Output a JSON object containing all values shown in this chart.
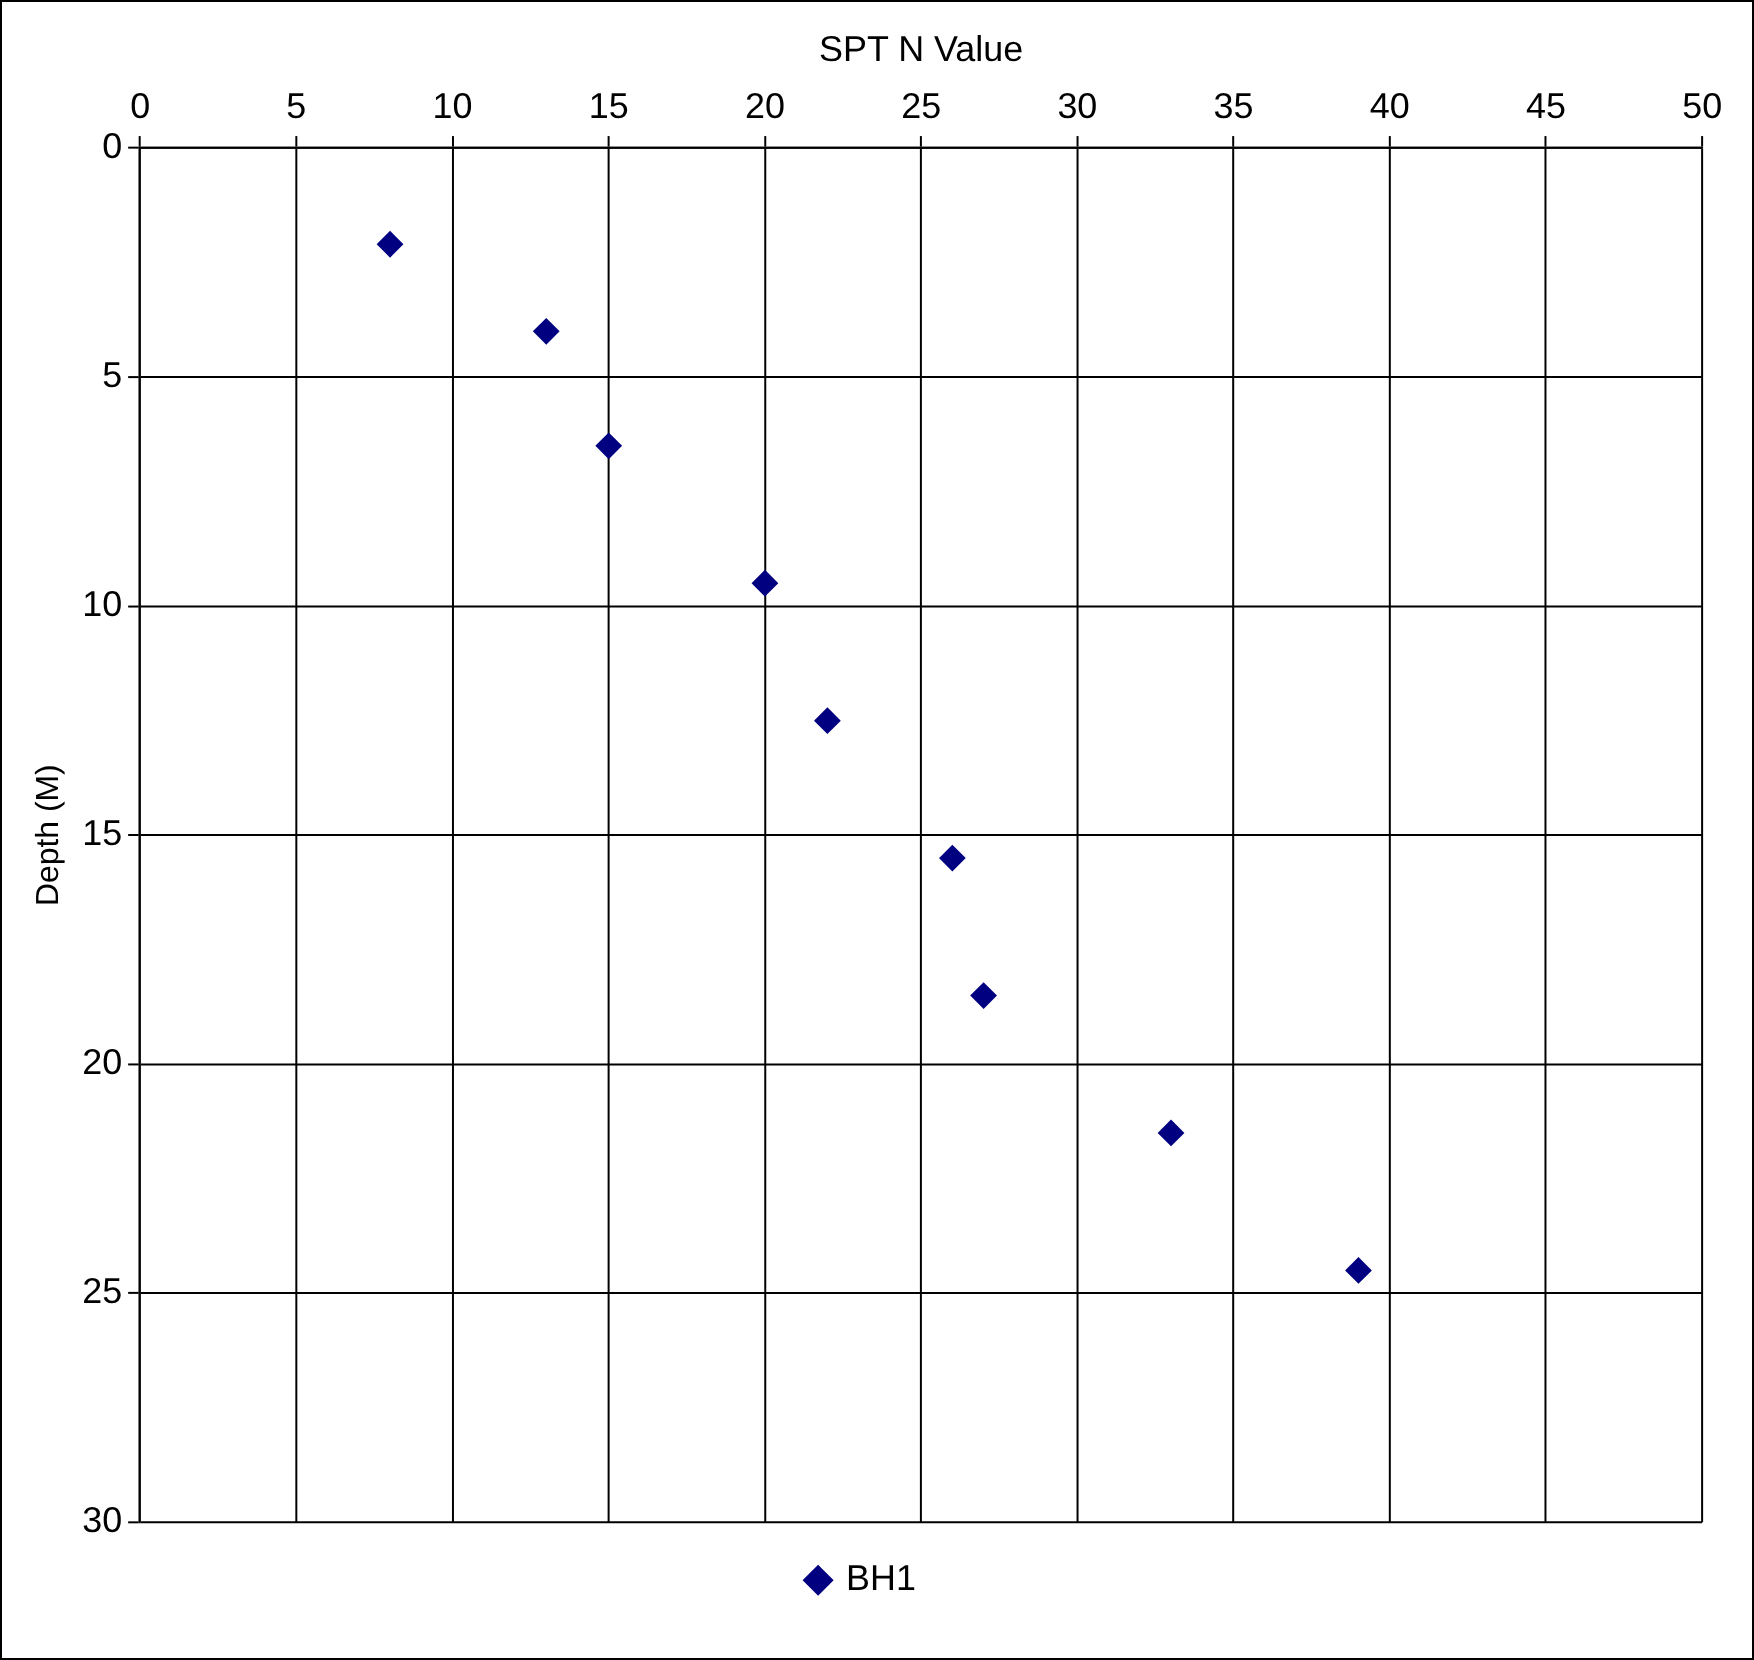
{
  "chart_data": {
    "type": "scatter",
    "xlabel": "SPT N Value",
    "ylabel": "Depth (M)",
    "xlim": [
      0,
      50
    ],
    "xticks": [
      0,
      5,
      10,
      15,
      20,
      25,
      30,
      35,
      40,
      45,
      50
    ],
    "ylim": [
      30,
      0
    ],
    "yticks": [
      0,
      5,
      10,
      15,
      20,
      25,
      30
    ],
    "grid": true,
    "legend": "bottom",
    "marker": "diamond",
    "series": [
      {
        "name": "BH1",
        "color": "#000080",
        "x": [
          8,
          13,
          15,
          20,
          22,
          26,
          27,
          33,
          39
        ],
        "values": [
          2.1,
          4,
          6.5,
          9.5,
          12.5,
          15.5,
          18.5,
          21.5,
          24.5
        ]
      }
    ]
  }
}
